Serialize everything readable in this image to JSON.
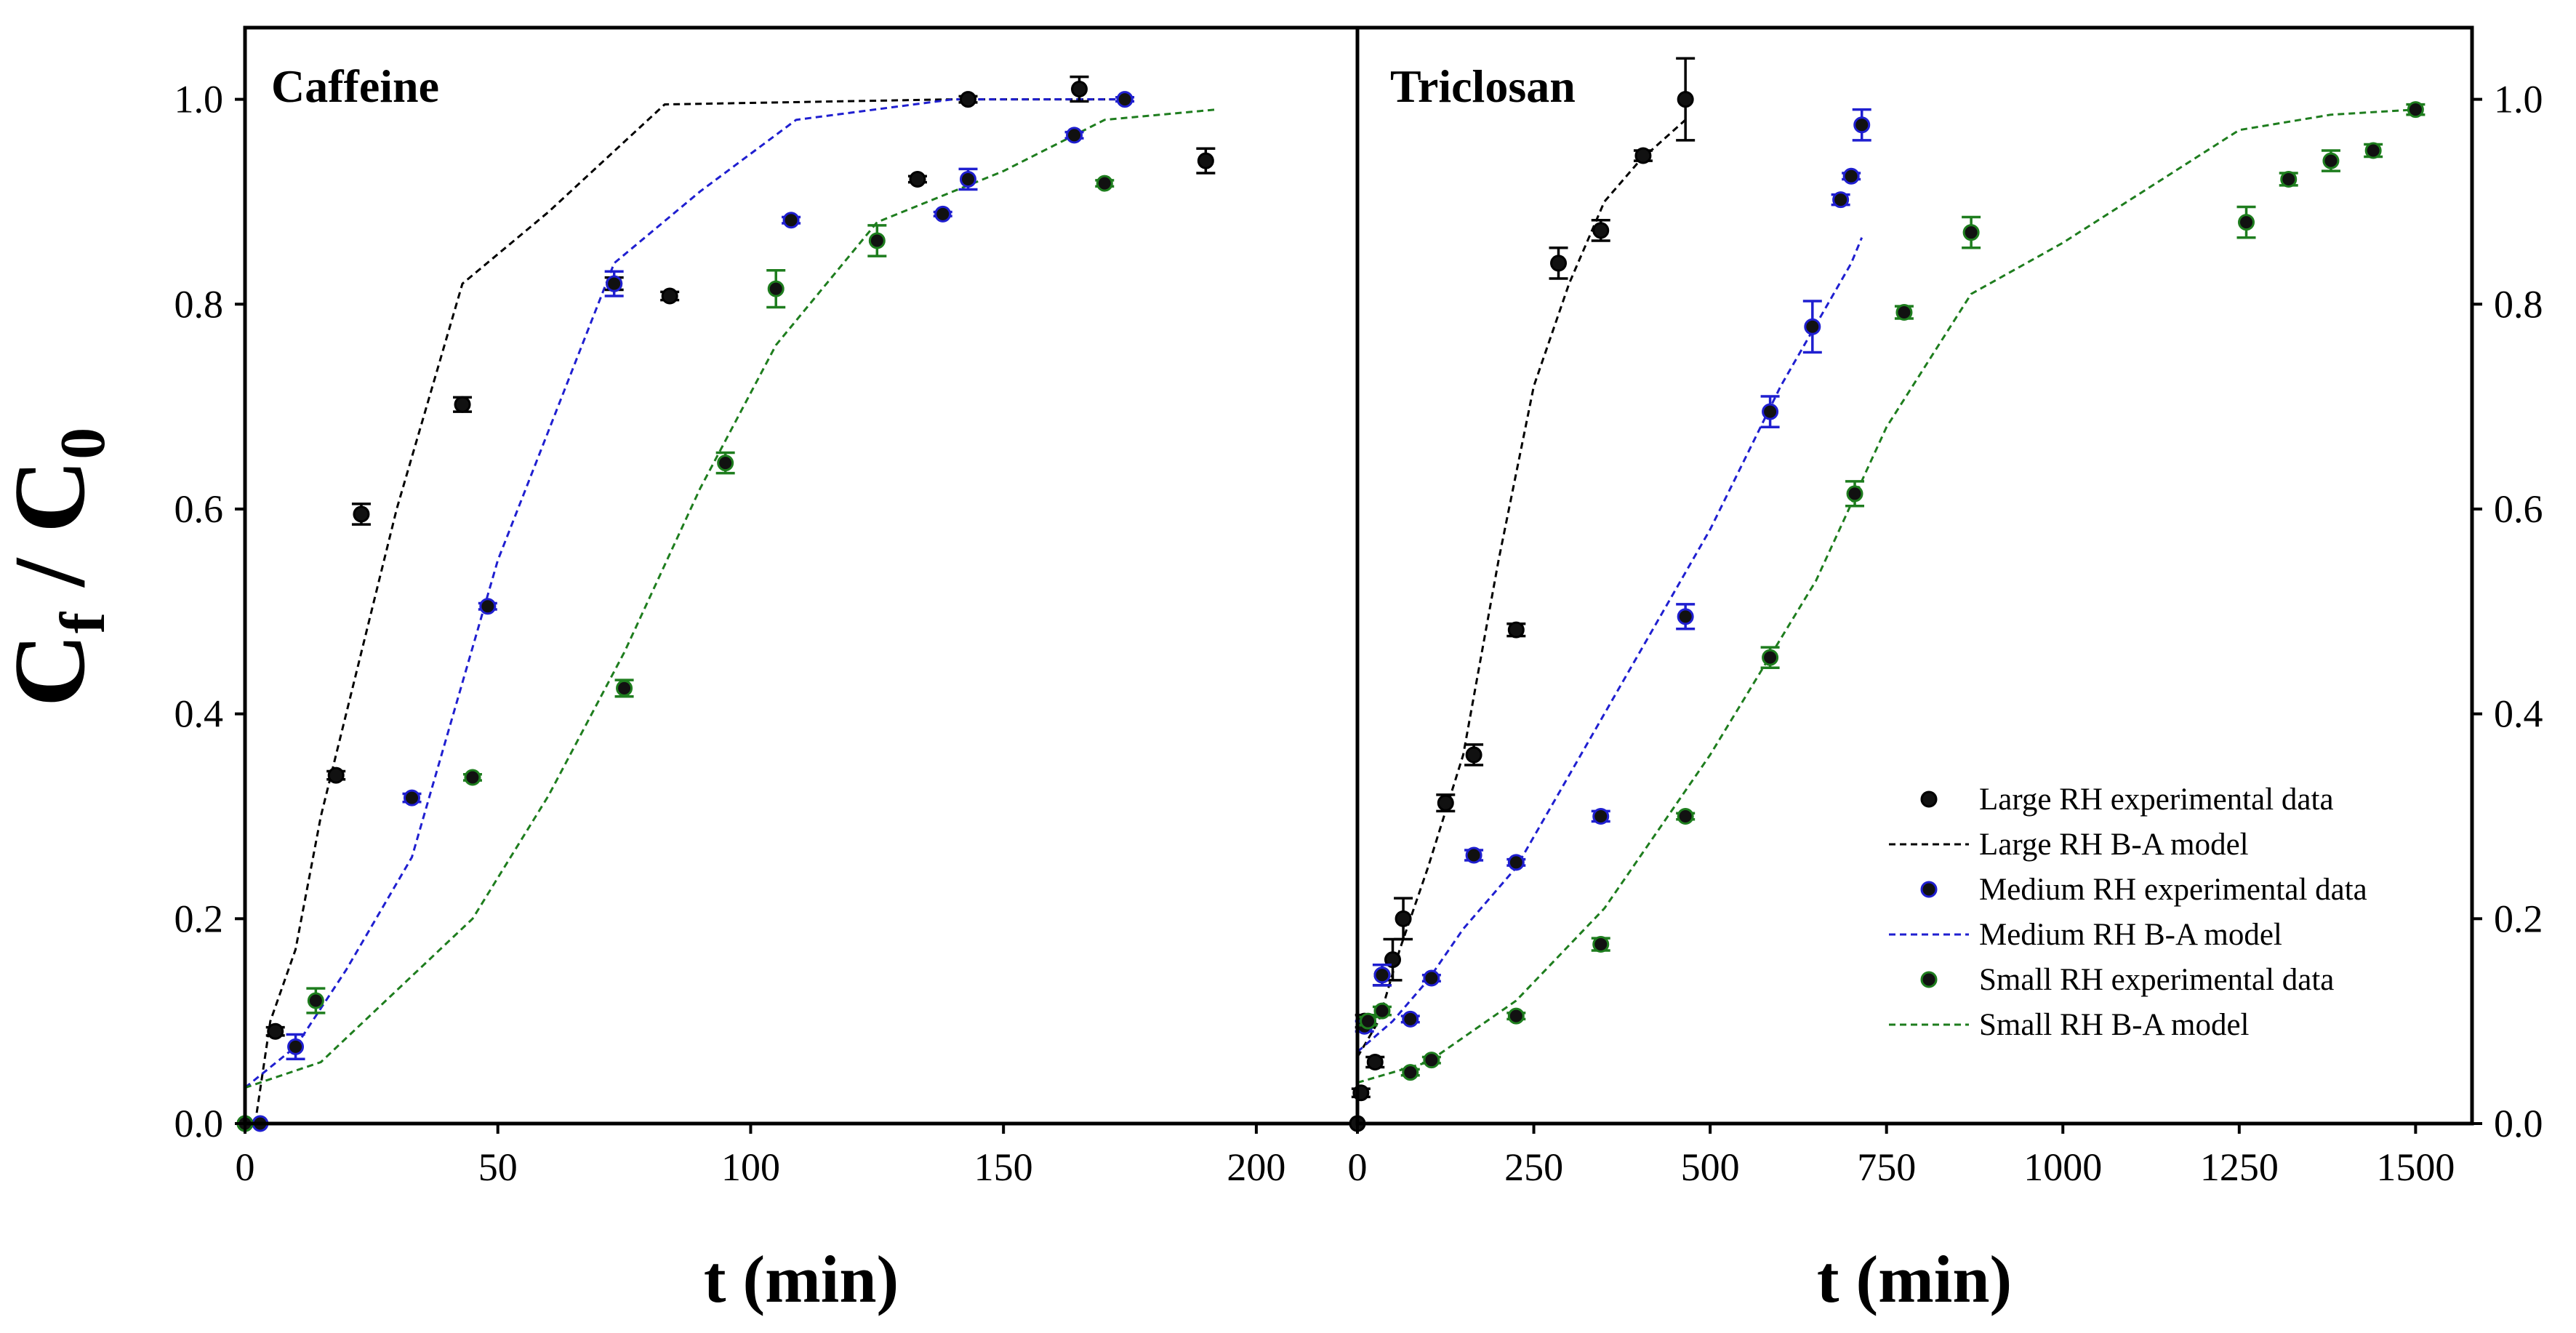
{
  "ylabel": {
    "main": "C",
    "sub1": "f",
    "sep": " / C",
    "sub2": "0"
  },
  "colors": {
    "large": "#000000",
    "medium": "#1f1fd0",
    "small": "#1e7d1e"
  },
  "legend": [
    {
      "label": "Large RH experimental data",
      "kind": "marker",
      "series": "large"
    },
    {
      "label": "Large RH B-A model",
      "kind": "line",
      "series": "large"
    },
    {
      "label": "Medium RH experimental data",
      "kind": "marker",
      "series": "medium"
    },
    {
      "label": "Medium RH B-A model",
      "kind": "line",
      "series": "medium"
    },
    {
      "label": "Small RH experimental data",
      "kind": "marker",
      "series": "small"
    },
    {
      "label": "Small RH B-A model",
      "kind": "line",
      "series": "small"
    }
  ],
  "chart_data": [
    {
      "type": "scatter",
      "title": "Caffeine",
      "xlabel": "t (min)",
      "ylabel": "Cf / C0",
      "xlim": [
        0,
        220
      ],
      "ylim": [
        0,
        1.07
      ],
      "xticks": [
        0,
        50,
        100,
        150,
        200
      ],
      "yticks": [
        0.0,
        0.2,
        0.4,
        0.6,
        0.8,
        1.0
      ],
      "ytick_side": "left",
      "series": [
        {
          "name": "Large RH experimental data",
          "key": "large",
          "kind": "points",
          "points": [
            [
              0,
              0,
              0
            ],
            [
              6,
              0.09,
              0.004
            ],
            [
              18,
              0.34,
              0.004
            ],
            [
              23,
              0.595,
              0.01
            ],
            [
              43,
              0.702,
              0.007
            ],
            [
              73,
              0.82,
              0.006
            ],
            [
              84,
              0.808,
              0.004
            ],
            [
              133,
              0.922,
              0.003
            ],
            [
              143,
              1.0,
              0.003
            ],
            [
              165,
              1.01,
              0.012
            ],
            [
              190,
              0.94,
              0.012
            ]
          ]
        },
        {
          "name": "Large RH B-A model",
          "key": "large",
          "kind": "line",
          "points": [
            [
              2,
              0.0
            ],
            [
              5,
              0.1
            ],
            [
              10,
              0.17
            ],
            [
              15,
              0.3
            ],
            [
              20,
              0.4
            ],
            [
              30,
              0.6
            ],
            [
              43,
              0.82
            ],
            [
              60,
              0.89
            ],
            [
              83,
              0.995
            ],
            [
              140,
              1.0
            ],
            [
              172,
              1.0
            ]
          ]
        },
        {
          "name": "Medium RH experimental data",
          "key": "medium",
          "kind": "points",
          "points": [
            [
              3,
              0,
              0
            ],
            [
              10,
              0.075,
              0.012
            ],
            [
              33,
              0.318,
              0.004
            ],
            [
              48,
              0.505,
              0.003
            ],
            [
              73,
              0.82,
              0.012
            ],
            [
              108,
              0.882,
              0.003
            ],
            [
              138,
              0.888,
              0.002
            ],
            [
              143,
              0.922,
              0.01
            ],
            [
              164,
              0.965,
              0.003
            ],
            [
              174,
              1.0,
              0.002
            ]
          ]
        },
        {
          "name": "Medium RH B-A model",
          "key": "medium",
          "kind": "line",
          "points": [
            [
              0,
              0.035
            ],
            [
              10,
              0.075
            ],
            [
              20,
              0.15
            ],
            [
              33,
              0.26
            ],
            [
              50,
              0.55
            ],
            [
              73,
              0.84
            ],
            [
              90,
              0.91
            ],
            [
              109,
              0.98
            ],
            [
              140,
              1.0
            ],
            [
              175,
              1.0
            ]
          ]
        },
        {
          "name": "Small RH experimental data",
          "key": "small",
          "kind": "points",
          "points": [
            [
              0,
              0,
              0
            ],
            [
              14,
              0.12,
              0.012
            ],
            [
              45,
              0.338,
              0.003
            ],
            [
              75,
              0.425,
              0.008
            ],
            [
              95,
              0.645,
              0.01
            ],
            [
              105,
              0.815,
              0.018
            ],
            [
              125,
              0.862,
              0.015
            ],
            [
              170,
              0.918,
              0.003
            ]
          ]
        },
        {
          "name": "Small RH B-A model",
          "key": "small",
          "kind": "line",
          "points": [
            [
              0,
              0.035
            ],
            [
              15,
              0.06
            ],
            [
              30,
              0.13
            ],
            [
              45,
              0.2
            ],
            [
              60,
              0.32
            ],
            [
              75,
              0.46
            ],
            [
              90,
              0.62
            ],
            [
              105,
              0.76
            ],
            [
              125,
              0.88
            ],
            [
              150,
              0.93
            ],
            [
              170,
              0.98
            ],
            [
              192,
              0.99
            ]
          ]
        }
      ]
    },
    {
      "type": "scatter",
      "title": "Triclosan",
      "xlabel": "t (min)",
      "ylabel": "Cf / C0",
      "xlim": [
        0,
        1580
      ],
      "ylim": [
        0,
        1.07
      ],
      "xticks": [
        0,
        250,
        500,
        750,
        1000,
        1250,
        1500
      ],
      "yticks": [
        0.0,
        0.2,
        0.4,
        0.6,
        0.8,
        1.0
      ],
      "ytick_side": "right",
      "series": [
        {
          "name": "Large RH experimental data",
          "key": "large",
          "kind": "points",
          "points": [
            [
              0,
              0,
              0
            ],
            [
              5,
              0.03,
              0.004
            ],
            [
              10,
              0.1,
              0.006
            ],
            [
              25,
              0.06,
              0.005
            ],
            [
              35,
              0.145,
              0.01
            ],
            [
              50,
              0.16,
              0.02
            ],
            [
              65,
              0.2,
              0.02
            ],
            [
              125,
              0.313,
              0.008
            ],
            [
              165,
              0.36,
              0.01
            ],
            [
              225,
              0.482,
              0.006
            ],
            [
              285,
              0.84,
              0.015
            ],
            [
              345,
              0.872,
              0.01
            ],
            [
              405,
              0.945,
              0.005
            ],
            [
              465,
              1.0,
              0.04
            ]
          ]
        },
        {
          "name": "Large RH B-A model",
          "key": "large",
          "kind": "line",
          "points": [
            [
              0,
              0.065
            ],
            [
              30,
              0.1
            ],
            [
              60,
              0.17
            ],
            [
              100,
              0.25
            ],
            [
              150,
              0.36
            ],
            [
              200,
              0.55
            ],
            [
              250,
              0.72
            ],
            [
              300,
              0.82
            ],
            [
              350,
              0.9
            ],
            [
              400,
              0.94
            ],
            [
              465,
              0.98
            ]
          ]
        },
        {
          "name": "Medium RH experimental data",
          "key": "medium",
          "kind": "points",
          "points": [
            [
              10,
              0.095,
              0.005
            ],
            [
              35,
              0.145,
              0.01
            ],
            [
              75,
              0.102,
              0.003
            ],
            [
              105,
              0.142,
              0.003
            ],
            [
              165,
              0.262,
              0.005
            ],
            [
              225,
              0.255,
              0.003
            ],
            [
              345,
              0.3,
              0.005
            ],
            [
              465,
              0.495,
              0.012
            ],
            [
              585,
              0.695,
              0.015
            ],
            [
              645,
              0.778,
              0.025
            ],
            [
              685,
              0.902,
              0.005
            ],
            [
              700,
              0.925,
              0.003
            ],
            [
              715,
              0.975,
              0.015
            ]
          ]
        },
        {
          "name": "Medium RH B-A model",
          "key": "medium",
          "kind": "line",
          "points": [
            [
              0,
              0.07
            ],
            [
              50,
              0.1
            ],
            [
              100,
              0.14
            ],
            [
              150,
              0.19
            ],
            [
              225,
              0.25
            ],
            [
              300,
              0.34
            ],
            [
              400,
              0.46
            ],
            [
              500,
              0.58
            ],
            [
              600,
              0.72
            ],
            [
              700,
              0.84
            ],
            [
              715,
              0.865
            ]
          ]
        },
        {
          "name": "Small RH experimental data",
          "key": "small",
          "kind": "points",
          "points": [
            [
              15,
              0.1,
              0.004
            ],
            [
              35,
              0.11,
              0.004
            ],
            [
              75,
              0.05,
              0.003
            ],
            [
              105,
              0.062,
              0.003
            ],
            [
              225,
              0.105,
              0.003
            ],
            [
              345,
              0.175,
              0.006
            ],
            [
              465,
              0.3,
              0.003
            ],
            [
              585,
              0.455,
              0.01
            ],
            [
              705,
              0.615,
              0.012
            ],
            [
              775,
              0.792,
              0.006
            ],
            [
              870,
              0.87,
              0.015
            ],
            [
              1260,
              0.88,
              0.015
            ],
            [
              1320,
              0.922,
              0.006
            ],
            [
              1380,
              0.94,
              0.01
            ],
            [
              1440,
              0.95,
              0.006
            ],
            [
              1500,
              0.99,
              0.005
            ]
          ]
        },
        {
          "name": "Small RH B-A model",
          "key": "small",
          "kind": "line",
          "points": [
            [
              0,
              0.04
            ],
            [
              100,
              0.06
            ],
            [
              225,
              0.12
            ],
            [
              350,
              0.21
            ],
            [
              500,
              0.36
            ],
            [
              650,
              0.53
            ],
            [
              750,
              0.68
            ],
            [
              870,
              0.81
            ],
            [
              1000,
              0.86
            ],
            [
              1250,
              0.97
            ],
            [
              1380,
              0.985
            ],
            [
              1500,
              0.99
            ]
          ]
        }
      ]
    }
  ]
}
